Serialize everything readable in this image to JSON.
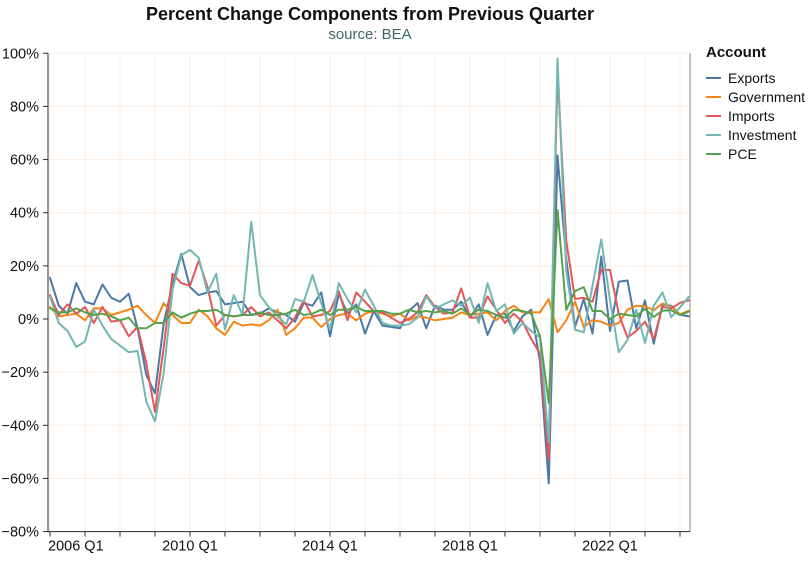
{
  "title": "Percent Change Components from Previous Quarter",
  "subtitle": "source: BEA",
  "legend": {
    "title": "Account"
  },
  "colors": {
    "grid": "#fcede3",
    "axis_line": "#2b2b2b",
    "view_border": "#8a8a8a",
    "label": "#111111",
    "subtitle": "#3d6568"
  },
  "chart_data": {
    "type": "line",
    "title": "Percent Change Components from Previous Quarter",
    "subtitle": "source: BEA",
    "x_unit": "quarter",
    "x_start_year": 2006,
    "x_start_quarter": 1,
    "x_end_year": 2024,
    "x_end_quarter": 2,
    "ylim": [
      -80,
      100
    ],
    "grid": true,
    "legend_position": "top-right",
    "legend_title": "Account",
    "y_ticks": [
      {
        "value": 100,
        "label": "100%"
      },
      {
        "value": 80,
        "label": "80%"
      },
      {
        "value": 60,
        "label": "60%"
      },
      {
        "value": 40,
        "label": "40%"
      },
      {
        "value": 20,
        "label": "20%"
      },
      {
        "value": 0,
        "label": "0%"
      },
      {
        "value": -20,
        "label": "−20%"
      },
      {
        "value": -40,
        "label": "−40%"
      },
      {
        "value": -60,
        "label": "−60%"
      },
      {
        "value": -80,
        "label": "−80%"
      }
    ],
    "x_labeled_ticks": [
      {
        "year": 2006,
        "label": "2006 Q1"
      },
      {
        "year": 2010,
        "label": "2010 Q1"
      },
      {
        "year": 2014,
        "label": "2014 Q1"
      },
      {
        "year": 2018,
        "label": "2018 Q1"
      },
      {
        "year": 2022,
        "label": "2022 Q1"
      }
    ],
    "series": [
      {
        "name": "Exports",
        "color": "#4c78a8",
        "values": [
          15.5,
          5,
          2,
          13.5,
          6.5,
          5.5,
          13,
          8,
          6.5,
          9.5,
          -3.5,
          -21,
          -28,
          -1.5,
          13,
          24.5,
          12,
          9,
          10,
          10.5,
          5.5,
          6,
          6.5,
          1.5,
          2,
          4,
          2.5,
          1.5,
          -1,
          6,
          5,
          10,
          -6.5,
          9.5,
          2,
          5.5,
          -5.5,
          3,
          -2.5,
          -3,
          -3.5,
          3,
          6,
          -3.5,
          5,
          3.5,
          3.5,
          6.5,
          0.5,
          5.5,
          -6,
          1.5,
          2,
          -4.5,
          1,
          3.5,
          -16,
          -61.9,
          61.5,
          22.5,
          -3,
          7.5,
          -5.5,
          23.5,
          -4.5,
          14,
          14.5,
          -3.5,
          7,
          -9.3,
          5.4,
          5,
          1.6,
          1
        ]
      },
      {
        "name": "Government",
        "color": "#f58518",
        "values": [
          4.5,
          1,
          1.5,
          2,
          -0.5,
          4,
          4,
          1.5,
          2.5,
          3.5,
          5,
          1.5,
          -1.5,
          6,
          1.5,
          -1.5,
          -1.5,
          3.5,
          1,
          -3.5,
          -6,
          -1,
          -2.5,
          -2,
          -2.5,
          -0.5,
          3.5,
          -6,
          -3.5,
          0.5,
          0.5,
          -3,
          0,
          1.5,
          2,
          -0.5,
          2,
          3,
          2,
          1,
          2,
          -0.5,
          1,
          0.5,
          -0.5,
          0,
          0.5,
          2.5,
          1.5,
          2,
          2.5,
          -0.5,
          3,
          5,
          2.5,
          2.5,
          2.5,
          7.5,
          -5,
          -0.5,
          6.5,
          -3,
          -0.5,
          -1,
          -2.5,
          -1.5,
          3.5,
          5,
          4.8,
          3.3,
          5.8,
          4.6,
          1.8,
          3.1
        ]
      },
      {
        "name": "Imports",
        "color": "#e45756",
        "values": [
          9,
          1.5,
          5.5,
          2,
          4.5,
          -1.5,
          4.5,
          -1,
          -0.5,
          -6.5,
          -3,
          -16.5,
          -35,
          -10.5,
          17,
          13.5,
          12.5,
          22,
          12,
          -2.5,
          1.5,
          1,
          1.5,
          4.5,
          1,
          2.5,
          -0.5,
          -3.5,
          0.5,
          7,
          1,
          1.5,
          3,
          10.5,
          -0.5,
          10,
          6.5,
          3,
          2.5,
          0.5,
          -1.5,
          0,
          2.5,
          9,
          4.5,
          2,
          2.5,
          11.5,
          0.5,
          0.5,
          8.5,
          3.5,
          -1.5,
          2,
          -1,
          -7.5,
          -13,
          -53,
          93,
          29.5,
          7.5,
          8,
          6.5,
          18.5,
          18.5,
          2,
          -7,
          -4.5,
          -1,
          -7.5,
          4.5,
          4,
          6.1,
          7
        ]
      },
      {
        "name": "Investment",
        "color": "#72b7b2",
        "values": [
          8.5,
          -1.5,
          -4.5,
          -10.5,
          -8.5,
          3.5,
          -2.5,
          -7.5,
          -10,
          -12.5,
          -12,
          -31,
          -38.5,
          -20,
          11,
          24,
          26,
          23,
          10,
          17,
          -4,
          9,
          1.5,
          36.5,
          9,
          4.5,
          1,
          -2,
          7.5,
          6.5,
          16.5,
          6,
          -4,
          13.5,
          7.5,
          2.5,
          11,
          5,
          -1.5,
          -2.5,
          -2.5,
          -2,
          0.5,
          8.5,
          4,
          5.5,
          7,
          5,
          8,
          -1.5,
          13.5,
          3,
          5.5,
          -5.5,
          -1.5,
          -4.5,
          -7,
          -46.5,
          98,
          18,
          -4,
          -5,
          12.5,
          30,
          7,
          -12.5,
          -8,
          3.5,
          -9,
          5,
          10,
          0.7,
          4.4,
          8.3
        ]
      },
      {
        "name": "PCE",
        "color": "#54a24b",
        "values": [
          4,
          2.5,
          2.5,
          4,
          2.5,
          1.5,
          2,
          1,
          -0.5,
          0.5,
          -3.5,
          -3.5,
          -1.5,
          -1.5,
          2.5,
          0.5,
          2,
          3,
          3,
          3.5,
          1.5,
          1,
          1.5,
          1.5,
          2.5,
          1.5,
          1.5,
          2,
          3.5,
          1.5,
          2,
          3.5,
          1.5,
          3.5,
          3.5,
          4.5,
          3,
          3,
          3,
          2,
          2,
          3.5,
          2.5,
          3,
          2.5,
          3,
          2,
          4,
          1.5,
          3.5,
          3,
          1.5,
          0.5,
          3.5,
          3,
          2,
          -6.5,
          -31.5,
          41,
          3.4,
          10.5,
          12,
          3,
          3,
          0,
          2,
          1.5,
          1,
          3.8,
          0.8,
          3.1,
          3.3,
          1.5,
          2.8
        ]
      }
    ]
  }
}
